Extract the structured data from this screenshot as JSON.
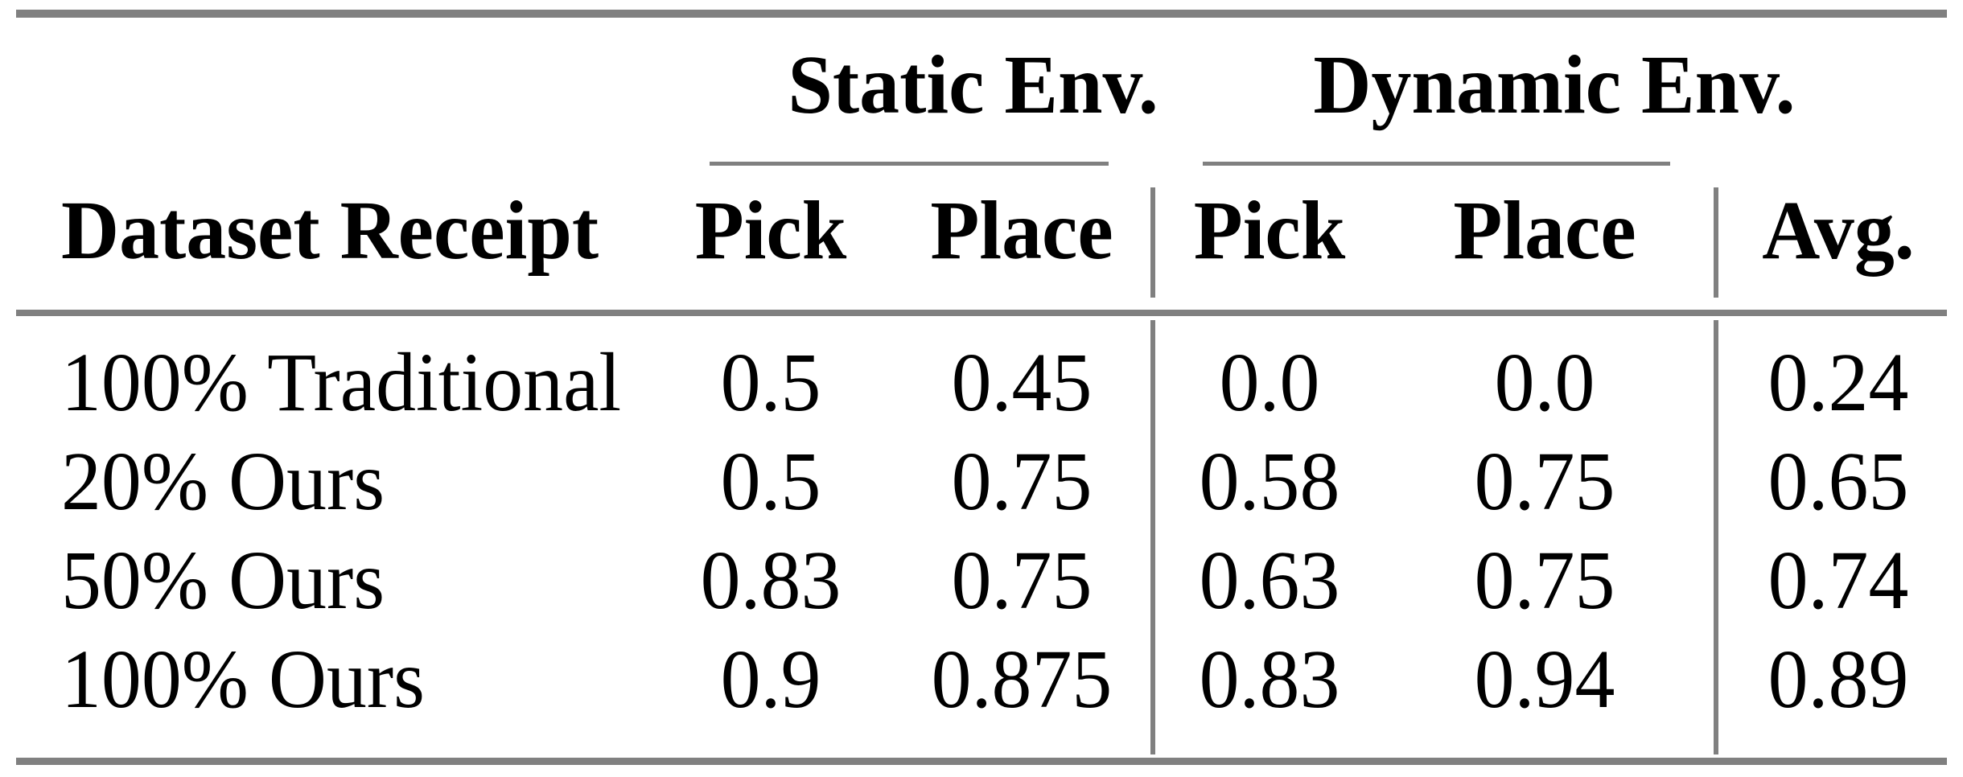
{
  "figure": {
    "type": "paper-results-table",
    "background": "#ffffff",
    "colors": {
      "rule_gray": "#808080",
      "text": "#000000"
    }
  },
  "table": {
    "groups": {
      "static": "Static Env.",
      "dynamic": "Dynamic Env."
    },
    "header": {
      "dataset": "Dataset Receipt",
      "static_pick": "Pick",
      "static_place": "Place",
      "dynamic_pick": "Pick",
      "dynamic_place": "Place",
      "avg": "Avg."
    },
    "rows": [
      {
        "dataset": "100% Traditional",
        "static_pick": "0.5",
        "static_place": "0.45",
        "dynamic_pick": "0.0",
        "dynamic_place": "0.0",
        "avg": "0.24"
      },
      {
        "dataset": "20% Ours",
        "static_pick": "0.5",
        "static_place": "0.75",
        "dynamic_pick": "0.58",
        "dynamic_place": "0.75",
        "avg": "0.65"
      },
      {
        "dataset": "50% Ours",
        "static_pick": "0.83",
        "static_place": "0.75",
        "dynamic_pick": "0.63",
        "dynamic_place": "0.75",
        "avg": "0.74"
      },
      {
        "dataset": "100% Ours",
        "static_pick": "0.9",
        "static_place": "0.875",
        "dynamic_pick": "0.83",
        "dynamic_place": "0.94",
        "avg": "0.89"
      }
    ]
  }
}
